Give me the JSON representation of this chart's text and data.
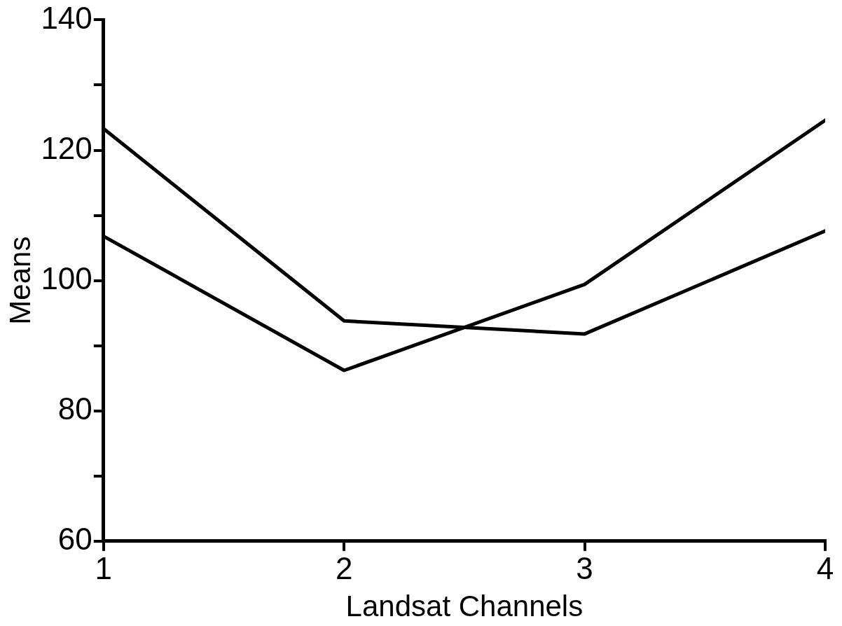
{
  "chart_data": {
    "type": "line",
    "xlabel": "Landsat Channels",
    "ylabel": "Means",
    "x": [
      1,
      2,
      3,
      4
    ],
    "series": [
      {
        "color": "#000000",
        "values": [
          123.3,
          93.8,
          91.8,
          107.6
        ]
      },
      {
        "color": "#000000",
        "values": [
          106.8,
          86.2,
          99.4,
          124.6
        ]
      }
    ],
    "xlim": [
      1,
      4
    ],
    "xticks": [
      1,
      2,
      3,
      4
    ],
    "ylim": [
      60,
      140
    ],
    "yticks": [
      60,
      {
        "value": 70,
        "label": null
      },
      80,
      {
        "value": 90,
        "label": null
      },
      100,
      {
        "value": 110,
        "label": null
      },
      120,
      {
        "value": 130,
        "label": null
      },
      140
    ],
    "grid": false,
    "legend": false,
    "marker": "none",
    "line_style": "solid"
  }
}
